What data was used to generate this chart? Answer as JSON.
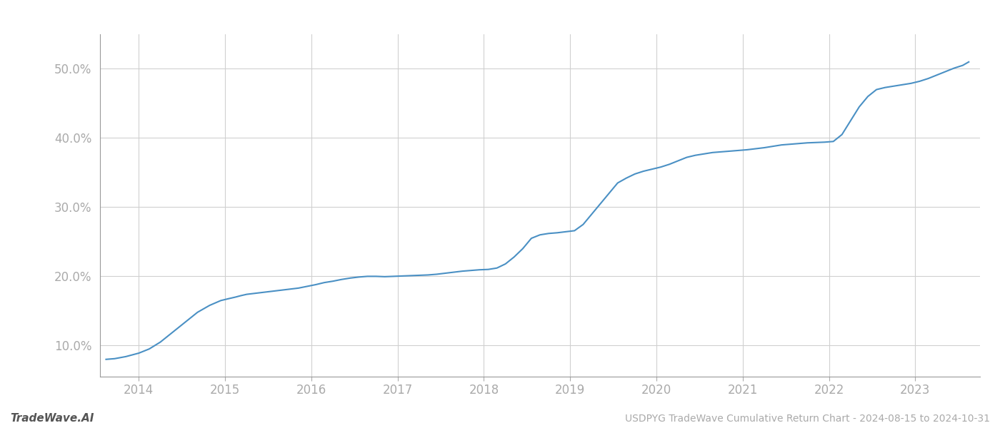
{
  "title": "USDPYG TradeWave Cumulative Return Chart - 2024-08-15 to 2024-10-31",
  "watermark": "TradeWave.AI",
  "line_color": "#4a90c4",
  "background_color": "#ffffff",
  "grid_color": "#d0d0d0",
  "x_years": [
    2014,
    2015,
    2016,
    2017,
    2018,
    2019,
    2020,
    2021,
    2022,
    2023
  ],
  "y_ticks": [
    10.0,
    20.0,
    30.0,
    40.0,
    50.0
  ],
  "xlim": [
    2013.55,
    2023.75
  ],
  "ylim": [
    5.5,
    55.0
  ],
  "data_x": [
    2013.62,
    2013.72,
    2013.85,
    2014.0,
    2014.12,
    2014.25,
    2014.4,
    2014.55,
    2014.68,
    2014.82,
    2014.95,
    2015.05,
    2015.12,
    2015.18,
    2015.25,
    2015.35,
    2015.45,
    2015.55,
    2015.65,
    2015.75,
    2015.85,
    2015.95,
    2016.05,
    2016.15,
    2016.25,
    2016.35,
    2016.45,
    2016.55,
    2016.65,
    2016.75,
    2016.85,
    2016.95,
    2017.05,
    2017.15,
    2017.25,
    2017.35,
    2017.45,
    2017.55,
    2017.65,
    2017.75,
    2017.85,
    2017.95,
    2018.05,
    2018.15,
    2018.25,
    2018.35,
    2018.45,
    2018.55,
    2018.65,
    2018.75,
    2018.85,
    2018.95,
    2019.05,
    2019.15,
    2019.25,
    2019.35,
    2019.45,
    2019.55,
    2019.65,
    2019.75,
    2019.85,
    2019.95,
    2020.05,
    2020.15,
    2020.25,
    2020.35,
    2020.45,
    2020.55,
    2020.65,
    2020.75,
    2020.85,
    2020.95,
    2021.05,
    2021.15,
    2021.25,
    2021.35,
    2021.45,
    2021.55,
    2021.65,
    2021.75,
    2021.85,
    2021.95,
    2022.05,
    2022.15,
    2022.25,
    2022.35,
    2022.45,
    2022.55,
    2022.65,
    2022.75,
    2022.85,
    2022.95,
    2023.05,
    2023.15,
    2023.25,
    2023.35,
    2023.45,
    2023.55,
    2023.62
  ],
  "data_y": [
    8.0,
    8.1,
    8.4,
    8.9,
    9.5,
    10.5,
    12.0,
    13.5,
    14.8,
    15.8,
    16.5,
    16.8,
    17.0,
    17.2,
    17.4,
    17.55,
    17.7,
    17.85,
    18.0,
    18.15,
    18.3,
    18.55,
    18.8,
    19.1,
    19.3,
    19.55,
    19.75,
    19.9,
    20.0,
    20.0,
    19.95,
    20.0,
    20.05,
    20.1,
    20.15,
    20.2,
    20.3,
    20.45,
    20.6,
    20.75,
    20.85,
    20.95,
    21.0,
    21.2,
    21.8,
    22.8,
    24.0,
    25.5,
    26.0,
    26.2,
    26.3,
    26.45,
    26.6,
    27.5,
    29.0,
    30.5,
    32.0,
    33.5,
    34.2,
    34.8,
    35.2,
    35.5,
    35.8,
    36.2,
    36.7,
    37.2,
    37.5,
    37.7,
    37.9,
    38.0,
    38.1,
    38.2,
    38.3,
    38.45,
    38.6,
    38.8,
    39.0,
    39.1,
    39.2,
    39.3,
    39.35,
    39.4,
    39.5,
    40.5,
    42.5,
    44.5,
    46.0,
    47.0,
    47.3,
    47.5,
    47.7,
    47.9,
    48.2,
    48.6,
    49.1,
    49.6,
    50.1,
    50.5,
    51.0
  ]
}
